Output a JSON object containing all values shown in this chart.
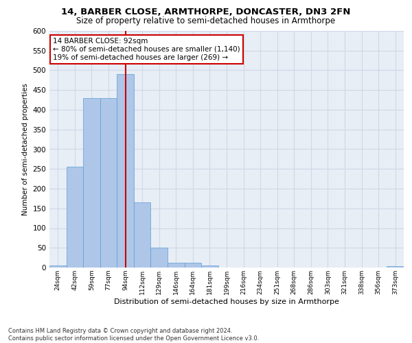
{
  "title": "14, BARBER CLOSE, ARMTHORPE, DONCASTER, DN3 2FN",
  "subtitle": "Size of property relative to semi-detached houses in Armthorpe",
  "xlabel": "Distribution of semi-detached houses by size in Armthorpe",
  "ylabel": "Number of semi-detached properties",
  "categories": [
    "24sqm",
    "42sqm",
    "59sqm",
    "77sqm",
    "94sqm",
    "112sqm",
    "129sqm",
    "146sqm",
    "164sqm",
    "181sqm",
    "199sqm",
    "216sqm",
    "234sqm",
    "251sqm",
    "268sqm",
    "286sqm",
    "303sqm",
    "321sqm",
    "338sqm",
    "356sqm",
    "373sqm"
  ],
  "values": [
    5,
    255,
    430,
    430,
    490,
    165,
    50,
    13,
    12,
    5,
    0,
    0,
    0,
    0,
    0,
    0,
    0,
    0,
    0,
    0,
    4
  ],
  "bar_color": "#aec6e8",
  "bar_edgecolor": "#5a9fd4",
  "vline_index": 4,
  "annotation_text_line1": "14 BARBER CLOSE: 92sqm",
  "annotation_text_line2": "← 80% of semi-detached houses are smaller (1,140)",
  "annotation_text_line3": "19% of semi-detached houses are larger (269) →",
  "annotation_box_facecolor": "#ffffff",
  "annotation_box_edgecolor": "#cc0000",
  "vline_color": "#cc0000",
  "ylim": [
    0,
    600
  ],
  "yticks": [
    0,
    50,
    100,
    150,
    200,
    250,
    300,
    350,
    400,
    450,
    500,
    550,
    600
  ],
  "grid_color": "#d0d8e8",
  "bg_color": "#e8eef5",
  "footer_line1": "Contains HM Land Registry data © Crown copyright and database right 2024.",
  "footer_line2": "Contains public sector information licensed under the Open Government Licence v3.0."
}
